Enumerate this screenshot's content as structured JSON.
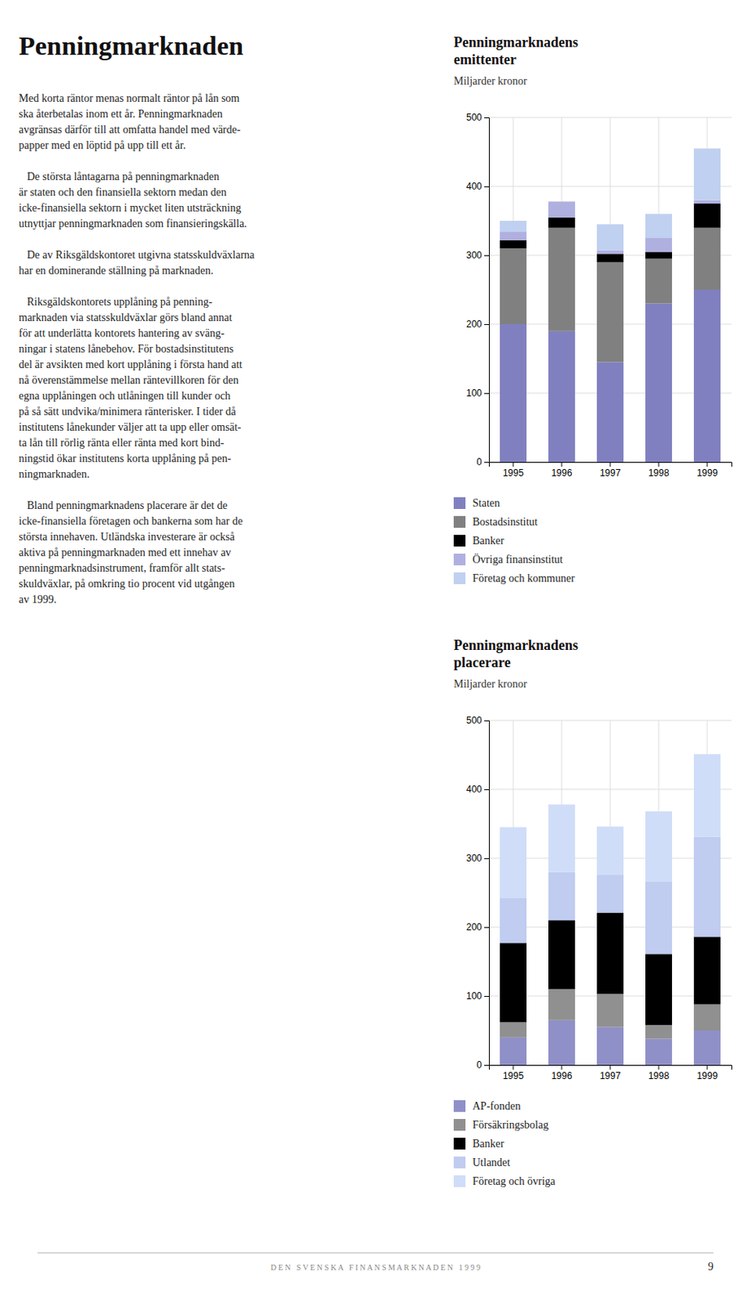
{
  "page_title": "Penningmarknaden",
  "body_paragraphs": [
    [
      "Med korta räntor menas normalt räntor på lån som",
      "ska återbetalas inom ett år. Penningmarknaden",
      "avgränsas därför till att omfatta handel med värde-",
      "papper med en löptid på upp till ett år."
    ],
    [
      "   De största låntagarna på penningmarknaden",
      "är staten och den finansiella sektorn medan den",
      "icke-finansiella sektorn i mycket liten utsträckning",
      "utnyttjar penningmarknaden som finansieringskälla."
    ],
    [
      "   De av Riksgäldskontoret utgivna statsskuldväxlarna",
      "har en dominerande ställning på marknaden."
    ],
    [
      "   Riksgäldskontorets upplåning på penning-",
      "marknaden via statsskuldväxlar görs bland annat",
      "för att underlätta kontorets hantering av sväng-",
      "ningar i statens lånebehov. För bostadsinstitutens",
      "del är avsikten med kort upplåning i första hand att",
      "nå överenstämmelse mellan räntevillkoren för den",
      "egna upplåningen och utlåningen till kunder och",
      "på så sätt undvika/minimera ränterisker. I tider då",
      "institutens lånekunder väljer att ta upp eller omsät-",
      "ta lån till rörlig ränta eller ränta med kort bind-",
      "ningstid ökar institutens korta upplåning på pen-",
      "ningmarknaden."
    ],
    [
      "   Bland penningmarknadens placerare är det de",
      "icke-finansiella företagen och bankerna som har de",
      "största innehaven. Utländska investerare är också",
      "aktiva på penningmarknaden med ett innehav av",
      "penningmarknadsinstrument, framför allt stats-",
      "skuldväxlar, på omkring tio procent vid utgången",
      "av 1999."
    ]
  ],
  "footer": "D E N   S V E N S K A   F I N A N S M A R K N A D E N   1 9 9 9",
  "page_number": "9",
  "chart_data": [
    {
      "type": "bar",
      "title": "Penningmarknadens\nemittenter",
      "subtitle": "Miljarder kronor",
      "categories": [
        "1995",
        "1996",
        "1997",
        "1998",
        "1999"
      ],
      "series": [
        {
          "name": "Staten",
          "color": "#8080c0",
          "values": [
            200,
            190,
            145,
            230,
            250
          ]
        },
        {
          "name": "Bostadsinstitut",
          "color": "#808080",
          "values": [
            110,
            150,
            145,
            65,
            90
          ]
        },
        {
          "name": "Banker",
          "color": "#000000",
          "values": [
            12,
            15,
            12,
            10,
            35
          ]
        },
        {
          "name": "Övriga finansinstitut",
          "color": "#b0b0e0",
          "values": [
            12,
            23,
            5,
            20,
            5
          ]
        },
        {
          "name": "Företag och kommuner",
          "color": "#c0d0f0",
          "values": [
            16,
            0,
            38,
            35,
            75
          ]
        }
      ],
      "ylim": [
        0,
        500
      ],
      "yticks": [
        0,
        100,
        200,
        300,
        400,
        500
      ],
      "grid": true,
      "stacked": true,
      "legend": "bottom"
    },
    {
      "type": "bar",
      "title": "Penningmarknadens\nplacerare",
      "subtitle": "Miljarder kronor",
      "categories": [
        "1995",
        "1996",
        "1997",
        "1998",
        "1999"
      ],
      "series": [
        {
          "name": "AP-fonden",
          "color": "#9090c8",
          "values": [
            40,
            65,
            55,
            38,
            50
          ]
        },
        {
          "name": "Försäkringsbolag",
          "color": "#909090",
          "values": [
            22,
            45,
            48,
            20,
            38
          ]
        },
        {
          "name": "Banker",
          "color": "#000000",
          "values": [
            115,
            100,
            118,
            103,
            98
          ]
        },
        {
          "name": "Utlandet",
          "color": "#c0ccf0",
          "values": [
            65,
            70,
            55,
            105,
            145
          ]
        },
        {
          "name": "Företag och övriga",
          "color": "#d0ddf8",
          "values": [
            103,
            98,
            70,
            102,
            120
          ]
        }
      ],
      "ylim": [
        0,
        500
      ],
      "yticks": [
        0,
        100,
        200,
        300,
        400,
        500
      ],
      "grid": true,
      "stacked": true,
      "legend": "bottom"
    }
  ]
}
